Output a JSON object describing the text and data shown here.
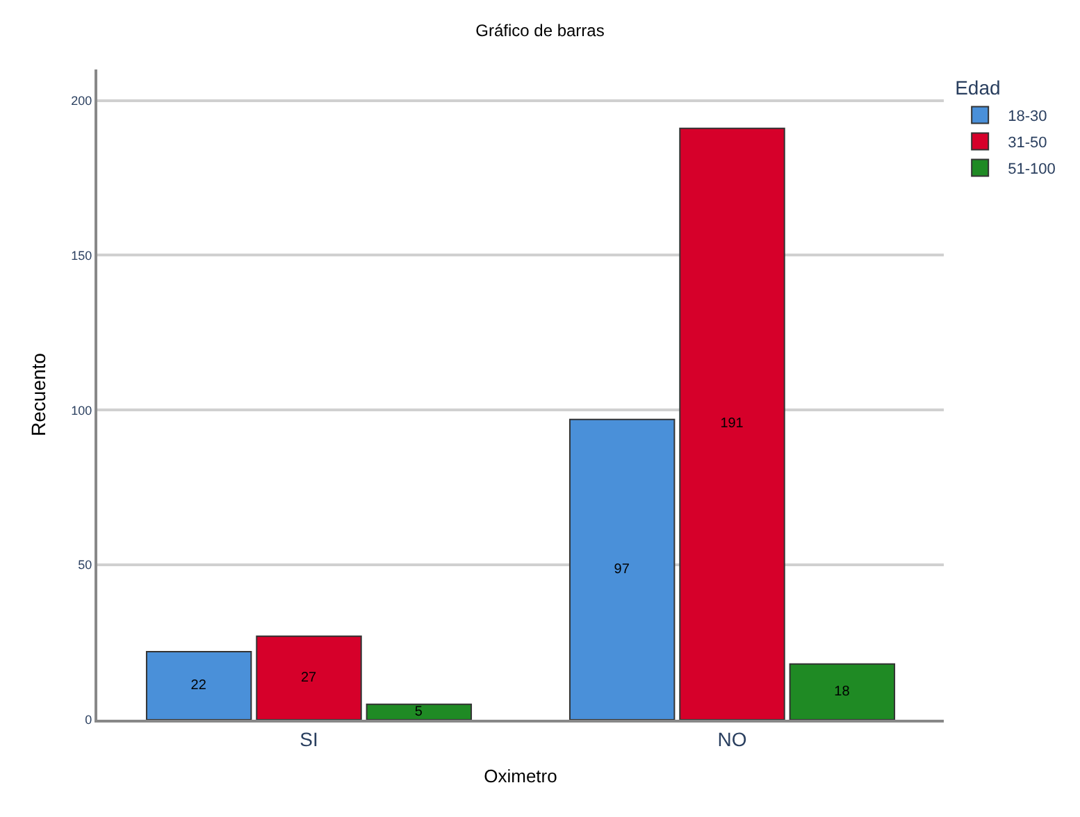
{
  "chart_data": {
    "type": "bar",
    "title": "Gráfico de barras",
    "xlabel": "Oximetro",
    "ylabel": "Recuento",
    "legend_title": "Edad",
    "categories": [
      "SI",
      "NO"
    ],
    "series": [
      {
        "name": "18-30",
        "color": "#4a90d9",
        "values": [
          22,
          97
        ]
      },
      {
        "name": "31-50",
        "color": "#d6002a",
        "values": [
          27,
          191
        ]
      },
      {
        "name": "51-100",
        "color": "#1f8a24",
        "values": [
          5,
          18
        ]
      }
    ],
    "ylim": [
      0,
      210
    ],
    "yticks": [
      0,
      50,
      100,
      150,
      200
    ],
    "grid": "y",
    "legend": "top right",
    "data_labels": true
  }
}
